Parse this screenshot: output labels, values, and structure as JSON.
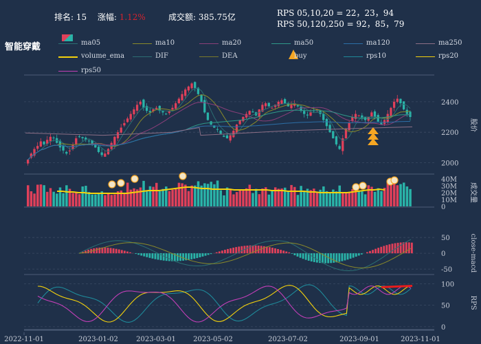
{
  "header": {
    "rank_label": "排名:",
    "rank_value": "15",
    "change_label": "涨幅:",
    "change_value": "1.12%",
    "turnover_label": "成交额:",
    "turnover_value": "385.75亿",
    "rps_line1": "RPS 05,10,20 = 22，23，94",
    "rps_line2": "RPS 50,120,250 = 92，85，79"
  },
  "title": "智能穿戴",
  "legend": [
    {
      "label": "ma05",
      "color": "#2b6f73",
      "kind": "line"
    },
    {
      "label": "ma10",
      "color": "#8a8a2a",
      "kind": "line"
    },
    {
      "label": "ma20",
      "color": "#8b3f7a",
      "kind": "line"
    },
    {
      "label": "ma50",
      "color": "#2f9a8a",
      "kind": "line"
    },
    {
      "label": "ma120",
      "color": "#2c6fa8",
      "kind": "line"
    },
    {
      "label": "ma250",
      "color": "#8d6f86",
      "kind": "line"
    },
    {
      "label": "volume_ema",
      "color": "#f5d20c",
      "kind": "line"
    },
    {
      "label": "DIF",
      "color": "#2c6f73",
      "kind": "line"
    },
    {
      "label": "DEA",
      "color": "#7a7a2a",
      "kind": "line"
    },
    {
      "label": "buy",
      "color": "#f5a623",
      "kind": "marker"
    },
    {
      "label": "rps10",
      "color": "#1f8a9a",
      "kind": "line"
    },
    {
      "label": "rps20",
      "color": "#f5d20c",
      "kind": "line"
    },
    {
      "label": "rps50",
      "color": "#c33fb8",
      "kind": "line"
    }
  ],
  "colors": {
    "up": "#e0405a",
    "down": "#2ab3a8",
    "grid": "#3a4a63",
    "bg": "#1f3049"
  },
  "chart_data": [
    {
      "type": "candlestick",
      "ylabel": "股价",
      "yticks": [
        2000,
        2200,
        2400
      ],
      "ylim": [
        1930,
        2580
      ],
      "note": "daily candles with moving averages ma05..ma250",
      "close_series": [
        2020,
        2060,
        2090,
        2110,
        2140,
        2120,
        2150,
        2170,
        2160,
        2130,
        2100,
        2080,
        2060,
        2080,
        2120,
        2160,
        2170,
        2160,
        2150,
        2140,
        2120,
        2100,
        2070,
        2050,
        2060,
        2090,
        2130,
        2170,
        2200,
        2230,
        2260,
        2290,
        2320,
        2350,
        2380,
        2400,
        2360,
        2340,
        2330,
        2350,
        2360,
        2340,
        2330,
        2320,
        2340,
        2360,
        2390,
        2420,
        2450,
        2480,
        2500,
        2520,
        2490,
        2450,
        2400,
        2330,
        2280,
        2250,
        2230,
        2220,
        2190,
        2170,
        2160,
        2180,
        2210,
        2250,
        2280,
        2300,
        2320,
        2340,
        2330,
        2310,
        2350,
        2380,
        2390,
        2370,
        2360,
        2380,
        2400,
        2410,
        2390,
        2370,
        2380,
        2390,
        2370,
        2340,
        2320,
        2310,
        2330,
        2340,
        2350,
        2320,
        2280,
        2240,
        2200,
        2160,
        2120,
        2090,
        2160,
        2220,
        2260,
        2300,
        2320,
        2310,
        2290,
        2280,
        2300,
        2330,
        2300,
        2270,
        2250,
        2280,
        2320,
        2360,
        2400,
        2420,
        2390,
        2350,
        2320,
        2300
      ],
      "buy_signals": [
        "2023-09-25"
      ]
    },
    {
      "type": "bar",
      "ylabel": "成交量",
      "yticks": [
        "0",
        "10M",
        "20M",
        "30M",
        "40M"
      ],
      "ylim": [
        0,
        42
      ],
      "volume_ema_approx": [
        22,
        22,
        21,
        21,
        20,
        20,
        19,
        19,
        19,
        19,
        19,
        19,
        19,
        19,
        20,
        21,
        22,
        23,
        23,
        23,
        24,
        25,
        26,
        27,
        28,
        28,
        27,
        26,
        26,
        25,
        25,
        25,
        25,
        24,
        24,
        24,
        24,
        24,
        24,
        24,
        23,
        23,
        23,
        22,
        22,
        22,
        22,
        21,
        21,
        20,
        20,
        20,
        20,
        20,
        20,
        21,
        22,
        23,
        24,
        24,
        25,
        24
      ],
      "highlighted_points_count": 8
    },
    {
      "type": "line",
      "ylabel": "close-macd",
      "yticks": [
        -50,
        0,
        50
      ],
      "ylim": [
        -65,
        70
      ],
      "series": [
        {
          "name": "DIF"
        },
        {
          "name": "DEA"
        }
      ]
    },
    {
      "type": "line",
      "ylabel": "RPS",
      "yticks": [
        0,
        50,
        100
      ],
      "ylim": [
        -5,
        115
      ],
      "series": [
        {
          "name": "rps10"
        },
        {
          "name": "rps20"
        },
        {
          "name": "rps50"
        }
      ],
      "x_ticks": [
        "2022-11-01",
        "2023-01-02",
        "2023-03-01",
        "2023-05-02",
        "2023-07-02",
        "2023-09-01",
        "2023-11-01"
      ]
    }
  ]
}
